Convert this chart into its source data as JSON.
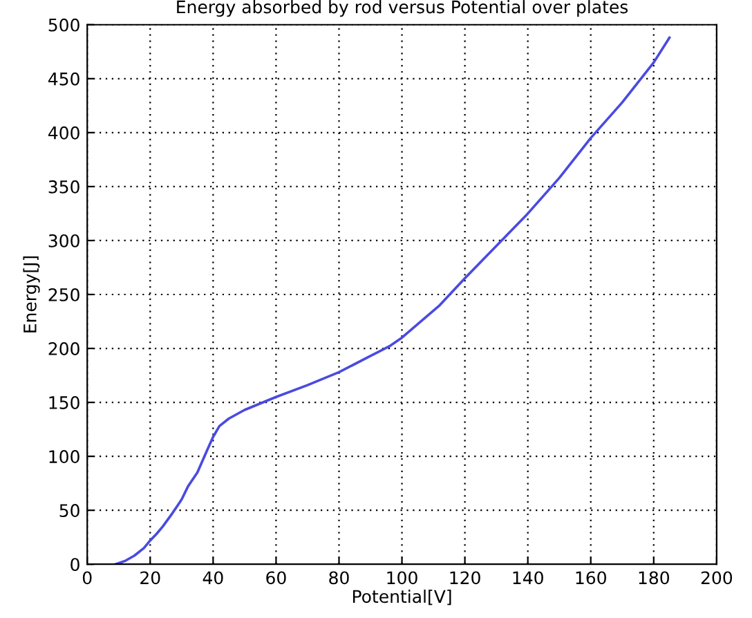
{
  "chart_data": {
    "type": "line",
    "title": "Energy absorbed by rod versus Potential over plates",
    "xlabel": "Potential[V]",
    "ylabel": "Energy[J]",
    "x": [
      9,
      12,
      15,
      18,
      20,
      22,
      24,
      27,
      30,
      32,
      35,
      38,
      40,
      42,
      45,
      50,
      60,
      70,
      80,
      90,
      96,
      100,
      112,
      120,
      130,
      140,
      150,
      160,
      170,
      180,
      185
    ],
    "series": [
      {
        "color": "#4a4ae0",
        "values": [
          0,
          3,
          8,
          15,
          22,
          28,
          35,
          47,
          60,
          72,
          85,
          105,
          118,
          128,
          135,
          143,
          155,
          166,
          178,
          193,
          202,
          210,
          240,
          265,
          295,
          325,
          358,
          395,
          428,
          465,
          488
        ]
      }
    ],
    "xlim": [
      0,
      200
    ],
    "ylim": [
      0,
      500
    ],
    "xticks": [
      0,
      20,
      40,
      60,
      80,
      100,
      120,
      140,
      160,
      180,
      200
    ],
    "yticks": [
      0,
      50,
      100,
      150,
      200,
      250,
      300,
      350,
      400,
      450,
      500
    ],
    "grid": true,
    "line_style": "solid"
  }
}
